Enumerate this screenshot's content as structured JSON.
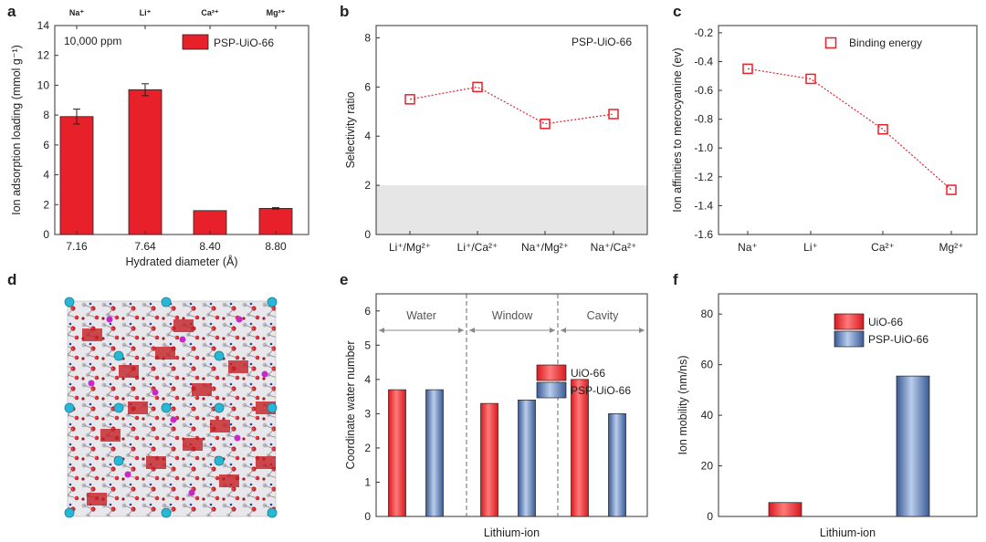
{
  "panels": {
    "a": {
      "label": "a"
    },
    "b": {
      "label": "b"
    },
    "c": {
      "label": "c"
    },
    "d": {
      "label": "d"
    },
    "e": {
      "label": "e"
    },
    "f": {
      "label": "f"
    }
  },
  "colors": {
    "red": "#e8202a",
    "blue": "#4d6fa8",
    "marker": "#e8202a",
    "cyan": "#27b8d6",
    "shade": "#e6e6e6"
  },
  "chart_data": [
    {
      "id": "a",
      "type": "bar",
      "categories": [
        "7.16",
        "7.64",
        "8.40",
        "8.80"
      ],
      "top_labels": [
        "Na⁺",
        "Li⁺",
        "Ca²⁺",
        "Mg²⁺"
      ],
      "series": [
        {
          "name": "PSP-UiO-66",
          "values": [
            7.9,
            9.7,
            1.6,
            1.75
          ],
          "errors": [
            0.5,
            0.4,
            0,
            0.05
          ]
        }
      ],
      "annotation": "10,000 ppm",
      "xlabel": "Hydrated diameter (Å)",
      "ylabel": "Ion adsorption loading (mmol g⁻¹)",
      "ylim": [
        0,
        14
      ],
      "yticks": [
        "0",
        "2",
        "4",
        "6",
        "8",
        "10",
        "12",
        "14"
      ],
      "legend": "top-right"
    },
    {
      "id": "b",
      "type": "line",
      "categories": [
        "Li⁺/Mg²⁺",
        "Li⁺/Ca²⁺",
        "Na⁺/Mg²⁺",
        "Na⁺/Ca²⁺"
      ],
      "values": [
        5.5,
        6.0,
        4.5,
        4.9
      ],
      "shaded_range": [
        0,
        2
      ],
      "annotation": "PSP-UiO-66",
      "ylabel": "Selectivity ratio",
      "ylim": [
        0,
        8.5
      ],
      "yticks": [
        "0",
        "2",
        "4",
        "6",
        "8"
      ]
    },
    {
      "id": "c",
      "type": "line",
      "categories": [
        "Na⁺",
        "Li⁺",
        "Ca²⁺",
        "Mg²⁺"
      ],
      "series": [
        {
          "name": "Binding energy",
          "values": [
            -0.45,
            -0.52,
            -0.87,
            -1.29
          ]
        }
      ],
      "ylabel": "Ion affinities to merocyanine (ev)",
      "ylim": [
        -1.6,
        -0.15
      ],
      "yticks": [
        "-1.6",
        "-1.4",
        "-1.2",
        "-1.0",
        "-0.8",
        "-0.6",
        "-0.4",
        "-0.2"
      ],
      "legend": "top-right"
    },
    {
      "id": "e",
      "type": "bar",
      "regions": [
        "Water",
        "Window",
        "Cavity"
      ],
      "series": [
        {
          "name": "UiO-66",
          "values": [
            3.7,
            3.3,
            4.0
          ]
        },
        {
          "name": "PSP-UiO-66",
          "values": [
            3.7,
            3.4,
            3.0
          ]
        }
      ],
      "xlabel": "Lithium-ion",
      "ylabel": "Coordinate water number",
      "ylim": [
        0,
        6.5
      ],
      "yticks": [
        "0",
        "1",
        "2",
        "3",
        "4",
        "5",
        "6"
      ],
      "legend": "top-right"
    },
    {
      "id": "f",
      "type": "bar",
      "series": [
        {
          "name": "UiO-66",
          "values": [
            5.5
          ]
        },
        {
          "name": "PSP-UiO-66",
          "values": [
            55.5
          ]
        }
      ],
      "xlabel": "Lithium-ion",
      "ylabel": "Ion mobility (nm/ns)",
      "ylim": [
        0,
        88
      ],
      "yticks": [
        "0",
        "20",
        "40",
        "60",
        "80"
      ],
      "legend": "top-right"
    }
  ]
}
